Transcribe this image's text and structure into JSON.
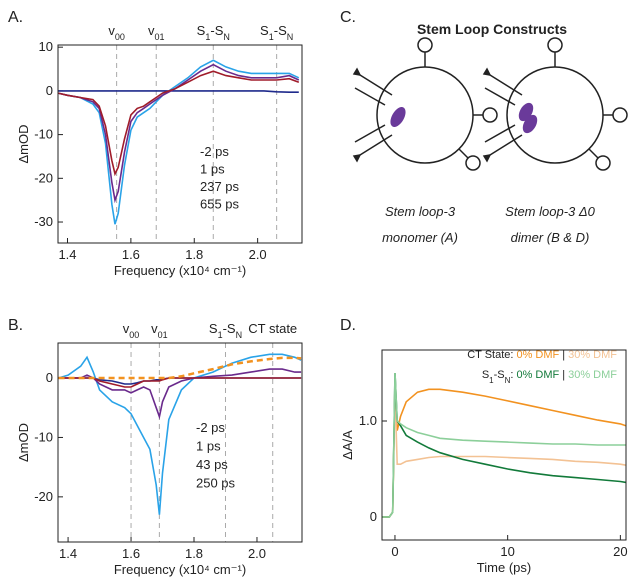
{
  "chart_data": [
    {
      "type": "line",
      "label": "A.",
      "xlabel": "Frequency (x10⁴ cm⁻¹)",
      "ylabel": "ΔmOD",
      "xlim": [
        1.37,
        2.14
      ],
      "xticks": [
        1.4,
        1.6,
        1.8,
        {
          "value": 2,
          "label": "2.0"
        }
      ],
      "ylim": [
        -34.8,
        10.5
      ],
      "yticks": [
        -30,
        -20,
        -10,
        0,
        10
      ],
      "annotations": [
        {
          "x": 1.555,
          "parts": [
            "v",
            "00"
          ]
        },
        {
          "x": 1.68,
          "parts": [
            "v",
            "01"
          ]
        },
        {
          "x": 1.86,
          "parts": [
            "S",
            "1",
            "-S",
            "N"
          ]
        },
        {
          "x": 2.06,
          "parts": [
            "S",
            "1",
            "-S",
            "N"
          ]
        }
      ],
      "x": [
        1.37,
        1.4,
        1.44,
        1.48,
        1.5,
        1.52,
        1.54,
        1.55,
        1.56,
        1.58,
        1.6,
        1.62,
        1.64,
        1.66,
        1.68,
        1.7,
        1.74,
        1.78,
        1.82,
        1.86,
        1.9,
        1.94,
        1.98,
        2.02,
        2.06,
        2.1,
        2.13
      ],
      "series": [
        {
          "name": "-2 ps",
          "color": "#1f2a8c",
          "values": [
            0,
            0,
            0,
            0,
            0,
            0,
            0,
            0,
            0,
            0,
            0,
            0,
            0,
            0,
            0,
            0,
            0,
            0,
            0,
            0,
            0,
            0,
            0,
            0,
            -0.2,
            -0.3,
            -0.3
          ]
        },
        {
          "name": "1 ps",
          "color": "#2aa3e8",
          "values": [
            -0.5,
            -1,
            -1.5,
            -3,
            -5,
            -12,
            -26,
            -30.5,
            -28,
            -17,
            -9,
            -6,
            -5,
            -4,
            -2.5,
            -1,
            1,
            3,
            5.5,
            7,
            5.5,
            4.5,
            4,
            4,
            4,
            4,
            3
          ]
        },
        {
          "name": "237 ps",
          "color": "#6a2a8c",
          "values": [
            -0.5,
            -1,
            -1.5,
            -2.5,
            -4,
            -10,
            -21,
            -25,
            -23,
            -14,
            -7,
            -5,
            -4,
            -3,
            -2,
            -1,
            0.5,
            2.5,
            4.5,
            6,
            4.5,
            3.5,
            3,
            3,
            3,
            3.5,
            2.5
          ]
        },
        {
          "name": "655 ps",
          "color": "#a01c2a",
          "values": [
            -0.5,
            -1,
            -1.5,
            -2,
            -3.5,
            -8,
            -16,
            -19,
            -17.5,
            -11,
            -5.5,
            -4,
            -3.5,
            -2.5,
            -1.5,
            -0.5,
            0.5,
            2,
            3.5,
            4.5,
            3.5,
            3,
            2.5,
            2.5,
            2.5,
            2.8,
            2
          ]
        }
      ]
    },
    {
      "type": "line",
      "label": "B.",
      "xlabel": "Frequency (x10⁴ cm⁻¹)",
      "ylabel": "ΔmOD",
      "xlim": [
        1.368,
        2.143
      ],
      "xticks": [
        1.4,
        1.6,
        1.8,
        {
          "value": 2,
          "label": "2.0"
        }
      ],
      "ylim": [
        -27.6,
        5.9
      ],
      "yticks": [
        -20,
        -10,
        0
      ],
      "annotations": [
        {
          "x": 1.6,
          "parts": [
            "v",
            "00"
          ]
        },
        {
          "x": 1.69,
          "parts": [
            "v",
            "01"
          ]
        },
        {
          "x": 1.9,
          "parts": [
            "S",
            "1",
            "-S",
            "N"
          ]
        },
        {
          "x": 2.05,
          "parts": [
            "CT state"
          ]
        }
      ],
      "x": [
        1.37,
        1.4,
        1.44,
        1.46,
        1.48,
        1.5,
        1.54,
        1.58,
        1.6,
        1.62,
        1.64,
        1.66,
        1.68,
        1.69,
        1.7,
        1.72,
        1.76,
        1.8,
        1.86,
        1.92,
        1.98,
        2.04,
        2.08,
        2.12,
        2.14
      ],
      "series": [
        {
          "name": "-2 ps",
          "color": "#1f2a8c",
          "values": [
            0,
            0,
            0,
            0,
            0,
            -0.3,
            -0.5,
            -1,
            -1,
            -0.8,
            -0.5,
            -0.5,
            -0.3,
            -0.3,
            -0.2,
            0,
            0,
            0,
            0,
            0,
            0,
            0,
            0,
            0,
            0
          ]
        },
        {
          "name": "1 ps",
          "color": "#2aa3e8",
          "values": [
            0,
            0.5,
            2,
            3.5,
            1,
            -2,
            -4,
            -5,
            -6,
            -8,
            -10,
            -12,
            -18,
            -23,
            -16,
            -7,
            -2,
            0,
            1,
            2.5,
            3.5,
            4,
            4,
            3.5,
            3
          ]
        },
        {
          "name": "43 ps",
          "color": "#6a2a8c",
          "values": [
            0,
            0,
            0,
            0.5,
            0,
            -1,
            -2,
            -2,
            -2.5,
            -2,
            -1.5,
            -2,
            -5,
            -6.5,
            -4,
            -1.5,
            -0.5,
            0,
            0.3,
            0.5,
            1,
            1.5,
            1.5,
            1,
            1
          ]
        },
        {
          "name": "250 ps",
          "color": "#a01c2a",
          "values": [
            0,
            0,
            0,
            0,
            0,
            -0.5,
            -1,
            -1.5,
            -1.5,
            -1,
            -0.5,
            -0.5,
            -0.5,
            -0.5,
            -0.3,
            0,
            0,
            0,
            0,
            0,
            0,
            0,
            0,
            0,
            0
          ]
        },
        {
          "color": "#f29220",
          "dashed": true,
          "values": [
            0,
            0,
            0,
            0,
            0,
            0,
            0,
            0,
            0,
            0,
            0,
            0,
            0,
            0,
            0,
            0,
            0.3,
            0.8,
            1.5,
            2.3,
            2.8,
            3.2,
            3.4,
            3.4,
            3.3
          ]
        }
      ]
    },
    {
      "type": "line",
      "label": "D.",
      "xlabel": "Time (ps)",
      "ylabel": "ΔA/A",
      "xlim": [
        -1.15,
        20.5
      ],
      "xticks": [
        0,
        10,
        20
      ],
      "ylim": [
        -0.24,
        1.74
      ],
      "yticks": [
        0,
        {
          "value": 1,
          "label": "1.0"
        }
      ],
      "separator": "|",
      "x": [
        -1.1,
        -0.5,
        -0.2,
        0,
        0.2,
        0.5,
        1,
        2,
        3,
        4,
        6,
        8,
        10,
        12,
        14,
        16,
        18,
        20,
        20.5
      ],
      "groups": [
        {
          "parts": [
            "CT State:"
          ],
          "series": [
            {
              "name": "0% DMF",
              "color": "#f29220",
              "values": [
                0,
                0,
                0.05,
                1.4,
                0.9,
                1.05,
                1.2,
                1.3,
                1.33,
                1.33,
                1.3,
                1.26,
                1.21,
                1.16,
                1.11,
                1.06,
                1.01,
                0.97,
                0.95
              ]
            },
            {
              "name": "30% DMF",
              "color": "#f3c294",
              "values": [
                0,
                0,
                0.05,
                1.3,
                0.55,
                0.55,
                0.58,
                0.6,
                0.62,
                0.63,
                0.63,
                0.63,
                0.62,
                0.61,
                0.6,
                0.58,
                0.57,
                0.55,
                0.54
              ]
            }
          ]
        },
        {
          "parts": [
            "S",
            "1",
            "-S",
            "N",
            ":"
          ],
          "series": [
            {
              "name": "0% DMF",
              "color": "#127a3a",
              "values": [
                0,
                0,
                0.05,
                1.5,
                1.0,
                0.95,
                0.85,
                0.78,
                0.72,
                0.67,
                0.6,
                0.55,
                0.5,
                0.46,
                0.43,
                0.41,
                0.39,
                0.37,
                0.36
              ]
            },
            {
              "name": "30% DMF",
              "color": "#8ccf9a",
              "values": [
                0,
                0,
                0.05,
                1.5,
                1.0,
                0.97,
                0.93,
                0.88,
                0.85,
                0.82,
                0.8,
                0.79,
                0.78,
                0.77,
                0.76,
                0.76,
                0.75,
                0.75,
                0.75
              ]
            }
          ]
        }
      ]
    }
  ],
  "diagram": {
    "label": "C.",
    "title": "Stem Loop Constructs",
    "captions": [
      [
        "Stem loop-3",
        "monomer (A)"
      ],
      [
        "Stem loop-3 Δ0",
        "dimer (B & D)"
      ]
    ]
  }
}
